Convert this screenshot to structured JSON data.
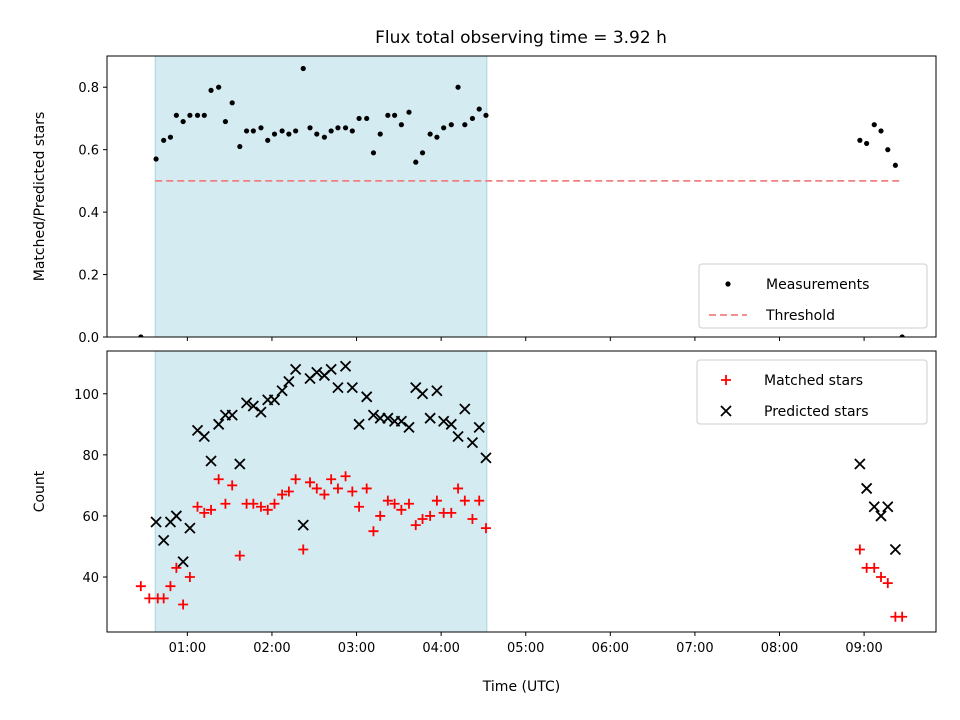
{
  "figure": {
    "title": "Flux total observing time = 3.92 h"
  },
  "chart_data": [
    {
      "type": "scatter",
      "panel": "top",
      "ylabel": "Matched/Predicted stars",
      "ylim": [
        0,
        0.9
      ],
      "yticks": [
        0.0,
        0.2,
        0.4,
        0.6,
        0.8
      ],
      "ytick_labels": [
        "0.0",
        "0.2",
        "0.4",
        "0.6",
        "0.8"
      ],
      "xlim": [
        0.05,
        9.85
      ],
      "shaded_region": {
        "x_start": 0.62,
        "x_end": 4.54,
        "color": "#d4ebf1"
      },
      "series": [
        {
          "name": "Measurements",
          "marker": "dot",
          "color": "#000000",
          "points": [
            [
              0.45,
              0.0
            ],
            [
              0.63,
              0.57
            ],
            [
              0.72,
              0.63
            ],
            [
              0.8,
              0.64
            ],
            [
              0.87,
              0.71
            ],
            [
              0.95,
              0.69
            ],
            [
              1.03,
              0.71
            ],
            [
              1.12,
              0.71
            ],
            [
              1.2,
              0.71
            ],
            [
              1.28,
              0.79
            ],
            [
              1.37,
              0.8
            ],
            [
              1.45,
              0.69
            ],
            [
              1.53,
              0.75
            ],
            [
              1.62,
              0.61
            ],
            [
              1.7,
              0.66
            ],
            [
              1.78,
              0.66
            ],
            [
              1.87,
              0.67
            ],
            [
              1.95,
              0.63
            ],
            [
              2.03,
              0.65
            ],
            [
              2.12,
              0.66
            ],
            [
              2.2,
              0.65
            ],
            [
              2.28,
              0.66
            ],
            [
              2.37,
              0.86
            ],
            [
              2.45,
              0.67
            ],
            [
              2.53,
              0.65
            ],
            [
              2.62,
              0.64
            ],
            [
              2.7,
              0.66
            ],
            [
              2.78,
              0.67
            ],
            [
              2.87,
              0.67
            ],
            [
              2.95,
              0.66
            ],
            [
              3.03,
              0.7
            ],
            [
              3.12,
              0.7
            ],
            [
              3.2,
              0.59
            ],
            [
              3.28,
              0.65
            ],
            [
              3.37,
              0.71
            ],
            [
              3.45,
              0.71
            ],
            [
              3.53,
              0.68
            ],
            [
              3.62,
              0.72
            ],
            [
              3.7,
              0.56
            ],
            [
              3.78,
              0.59
            ],
            [
              3.87,
              0.65
            ],
            [
              3.95,
              0.64
            ],
            [
              4.03,
              0.67
            ],
            [
              4.12,
              0.68
            ],
            [
              4.2,
              0.8
            ],
            [
              4.28,
              0.68
            ],
            [
              4.37,
              0.7
            ],
            [
              4.45,
              0.73
            ],
            [
              4.53,
              0.71
            ],
            [
              8.95,
              0.63
            ],
            [
              9.03,
              0.62
            ],
            [
              9.12,
              0.68
            ],
            [
              9.2,
              0.66
            ],
            [
              9.28,
              0.6
            ],
            [
              9.37,
              0.55
            ],
            [
              9.45,
              0.0
            ]
          ]
        },
        {
          "name": "Threshold",
          "line_style": "dashed",
          "color": "#f08080",
          "points": [
            [
              0.62,
              0.5
            ],
            [
              9.45,
              0.5
            ]
          ]
        }
      ],
      "legend_placement": "bottom-right"
    },
    {
      "type": "scatter",
      "panel": "bottom",
      "ylabel": "Count",
      "xlabel": "Time (UTC)",
      "ylim": [
        22,
        114
      ],
      "yticks": [
        40,
        60,
        80,
        100
      ],
      "ytick_labels": [
        "40",
        "60",
        "80",
        "100"
      ],
      "xlim": [
        0.05,
        9.85
      ],
      "xticks": [
        1,
        2,
        3,
        4,
        5,
        6,
        7,
        8,
        9
      ],
      "xtick_labels": [
        "01:00",
        "02:00",
        "03:00",
        "04:00",
        "05:00",
        "06:00",
        "07:00",
        "08:00",
        "09:00"
      ],
      "shaded_region": {
        "x_start": 0.62,
        "x_end": 4.54,
        "color": "#d4ebf1"
      },
      "series": [
        {
          "name": "Matched stars",
          "marker": "plus",
          "color": "#ff0000",
          "points": [
            [
              0.45,
              37
            ],
            [
              0.55,
              33
            ],
            [
              0.65,
              33
            ],
            [
              0.72,
              33
            ],
            [
              0.8,
              37
            ],
            [
              0.87,
              43
            ],
            [
              0.95,
              31
            ],
            [
              1.03,
              40
            ],
            [
              1.12,
              63
            ],
            [
              1.2,
              61
            ],
            [
              1.28,
              62
            ],
            [
              1.37,
              72
            ],
            [
              1.45,
              64
            ],
            [
              1.53,
              70
            ],
            [
              1.62,
              47
            ],
            [
              1.7,
              64
            ],
            [
              1.78,
              64
            ],
            [
              1.87,
              63
            ],
            [
              1.95,
              62
            ],
            [
              2.03,
              64
            ],
            [
              2.12,
              67
            ],
            [
              2.2,
              68
            ],
            [
              2.28,
              72
            ],
            [
              2.37,
              49
            ],
            [
              2.45,
              71
            ],
            [
              2.53,
              69
            ],
            [
              2.62,
              67
            ],
            [
              2.7,
              72
            ],
            [
              2.78,
              69
            ],
            [
              2.87,
              73
            ],
            [
              2.95,
              68
            ],
            [
              3.03,
              63
            ],
            [
              3.12,
              69
            ],
            [
              3.2,
              55
            ],
            [
              3.28,
              60
            ],
            [
              3.37,
              65
            ],
            [
              3.45,
              64
            ],
            [
              3.53,
              62
            ],
            [
              3.62,
              64
            ],
            [
              3.7,
              57
            ],
            [
              3.78,
              59
            ],
            [
              3.87,
              60
            ],
            [
              3.95,
              65
            ],
            [
              4.03,
              61
            ],
            [
              4.12,
              61
            ],
            [
              4.2,
              69
            ],
            [
              4.28,
              65
            ],
            [
              4.37,
              59
            ],
            [
              4.45,
              65
            ],
            [
              4.53,
              56
            ],
            [
              8.95,
              49
            ],
            [
              9.03,
              43
            ],
            [
              9.12,
              43
            ],
            [
              9.2,
              40
            ],
            [
              9.28,
              38
            ],
            [
              9.37,
              27
            ],
            [
              9.45,
              27
            ]
          ]
        },
        {
          "name": "Predicted stars",
          "marker": "x",
          "color": "#000000",
          "points": [
            [
              0.63,
              58
            ],
            [
              0.72,
              52
            ],
            [
              0.8,
              58
            ],
            [
              0.87,
              60
            ],
            [
              0.95,
              45
            ],
            [
              1.03,
              56
            ],
            [
              1.12,
              88
            ],
            [
              1.2,
              86
            ],
            [
              1.28,
              78
            ],
            [
              1.37,
              90
            ],
            [
              1.45,
              93
            ],
            [
              1.53,
              93
            ],
            [
              1.62,
              77
            ],
            [
              1.7,
              97
            ],
            [
              1.78,
              96
            ],
            [
              1.87,
              94
            ],
            [
              1.95,
              98
            ],
            [
              2.03,
              98
            ],
            [
              2.12,
              101
            ],
            [
              2.2,
              104
            ],
            [
              2.28,
              108
            ],
            [
              2.37,
              57
            ],
            [
              2.45,
              105
            ],
            [
              2.53,
              107
            ],
            [
              2.62,
              106
            ],
            [
              2.7,
              108
            ],
            [
              2.78,
              102
            ],
            [
              2.87,
              109
            ],
            [
              2.95,
              102
            ],
            [
              3.03,
              90
            ],
            [
              3.12,
              99
            ],
            [
              3.2,
              93
            ],
            [
              3.28,
              92
            ],
            [
              3.37,
              92
            ],
            [
              3.45,
              91
            ],
            [
              3.53,
              91
            ],
            [
              3.62,
              89
            ],
            [
              3.7,
              102
            ],
            [
              3.78,
              100
            ],
            [
              3.87,
              92
            ],
            [
              3.95,
              101
            ],
            [
              4.03,
              91
            ],
            [
              4.12,
              90
            ],
            [
              4.2,
              86
            ],
            [
              4.28,
              95
            ],
            [
              4.37,
              84
            ],
            [
              4.45,
              89
            ],
            [
              4.53,
              79
            ],
            [
              8.95,
              77
            ],
            [
              9.03,
              69
            ],
            [
              9.12,
              63
            ],
            [
              9.2,
              60
            ],
            [
              9.28,
              63
            ],
            [
              9.37,
              49
            ]
          ]
        }
      ],
      "legend_placement": "top-right"
    }
  ]
}
